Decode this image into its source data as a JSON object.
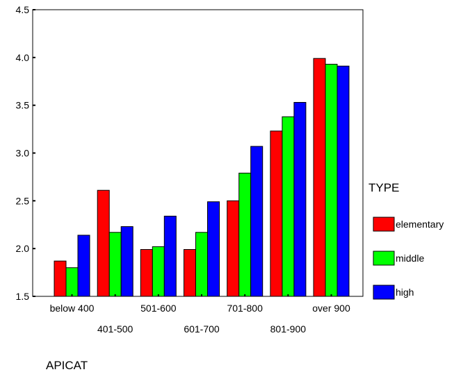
{
  "chart_data": {
    "type": "bar",
    "title": "",
    "xlabel": "APICAT",
    "ylabel": "",
    "categories": [
      "below 400",
      "401-500",
      "501-600",
      "601-700",
      "701-800",
      "801-900",
      "over 900"
    ],
    "ylim": [
      1.5,
      4.5
    ],
    "yticks": [
      "1.5",
      "2.0",
      "2.5",
      "3.0",
      "3.5",
      "4.0",
      "4.5"
    ],
    "grid": false,
    "legend": {
      "title": "TYPE",
      "position": "right"
    },
    "series": [
      {
        "name": "elementary",
        "color": "#ff0000",
        "values": [
          1.87,
          2.61,
          1.99,
          1.99,
          2.5,
          3.23,
          3.99
        ]
      },
      {
        "name": "middle",
        "color": "#00ff00",
        "values": [
          1.8,
          2.17,
          2.02,
          2.17,
          2.79,
          3.38,
          3.93
        ]
      },
      {
        "name": "high",
        "color": "#0000ff",
        "values": [
          2.14,
          2.23,
          2.34,
          2.49,
          3.07,
          3.53,
          3.91
        ]
      }
    ]
  }
}
